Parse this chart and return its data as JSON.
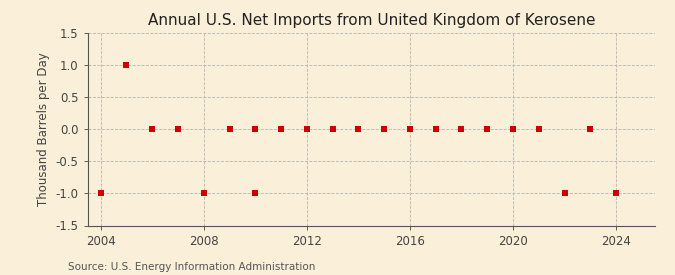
{
  "title": "Annual U.S. Net Imports from United Kingdom of Kerosene",
  "ylabel": "Thousand Barrels per Day",
  "source": "Source: U.S. Energy Information Administration",
  "background_color": "#faefd8",
  "plot_background_color": "#faefd8",
  "marker_color": "#cc0000",
  "grid_color": "#b0b0b0",
  "xlim": [
    2003.5,
    2025.5
  ],
  "ylim": [
    -1.5,
    1.5
  ],
  "xticks": [
    2004,
    2008,
    2012,
    2016,
    2020,
    2024
  ],
  "yticks": [
    -1.5,
    -1.0,
    -0.5,
    0.0,
    0.5,
    1.0,
    1.5
  ],
  "years": [
    2004,
    2005,
    2006,
    2007,
    2008,
    2009,
    2010,
    2010,
    2011,
    2012,
    2013,
    2014,
    2015,
    2016,
    2017,
    2018,
    2019,
    2020,
    2021,
    2022,
    2023,
    2024
  ],
  "values": [
    -1.0,
    1.0,
    0.0,
    0.0,
    -1.0,
    0.0,
    0.0,
    -1.0,
    0.0,
    0.0,
    0.0,
    0.0,
    0.0,
    0.0,
    0.0,
    0.0,
    0.0,
    0.0,
    0.0,
    -1.0,
    0.0,
    -1.0
  ],
  "title_fontsize": 11,
  "label_fontsize": 8.5,
  "tick_fontsize": 8.5,
  "source_fontsize": 7.5,
  "marker_size": 5
}
